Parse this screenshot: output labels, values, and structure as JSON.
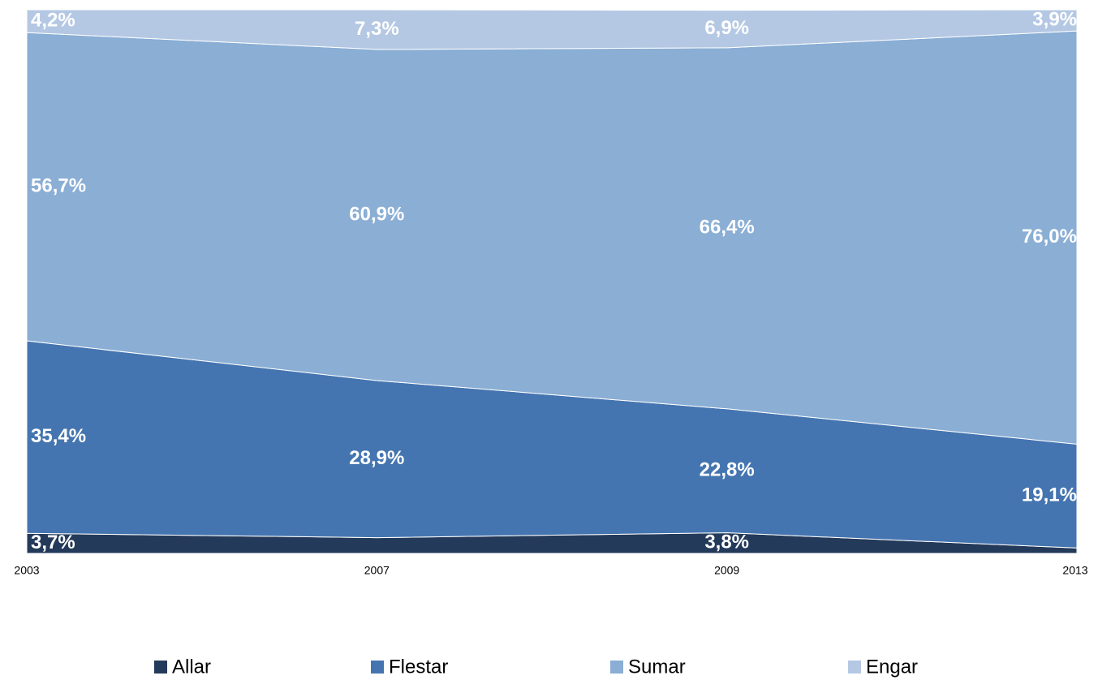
{
  "chart_data": {
    "type": "area_stacked",
    "categories": [
      "2003",
      "2007",
      "2009",
      "2013"
    ],
    "ylim": [
      0,
      100
    ],
    "series": [
      {
        "name": "Allar",
        "color": "#243a5a",
        "values": [
          3.7,
          2.9,
          3.8,
          1.0
        ],
        "value_labels": [
          "3,7%",
          null,
          "3,8%",
          null
        ]
      },
      {
        "name": "Flestar",
        "color": "#4575b0",
        "values": [
          35.4,
          28.9,
          22.8,
          19.1
        ],
        "value_labels": [
          "35,4%",
          "28,9%",
          "22,8%",
          "19,1%"
        ]
      },
      {
        "name": "Sumar",
        "color": "#8aaed4",
        "values": [
          56.7,
          60.9,
          66.4,
          76.0
        ],
        "value_labels": [
          "56,7%",
          "60,9%",
          "66,4%",
          "76,0%"
        ]
      },
      {
        "name": "Engar",
        "color": "#b4c8e3",
        "values": [
          4.2,
          7.3,
          6.9,
          3.9
        ],
        "value_labels": [
          "4,2%",
          "7,3%",
          "6,9%",
          "3,9%"
        ]
      }
    ]
  }
}
